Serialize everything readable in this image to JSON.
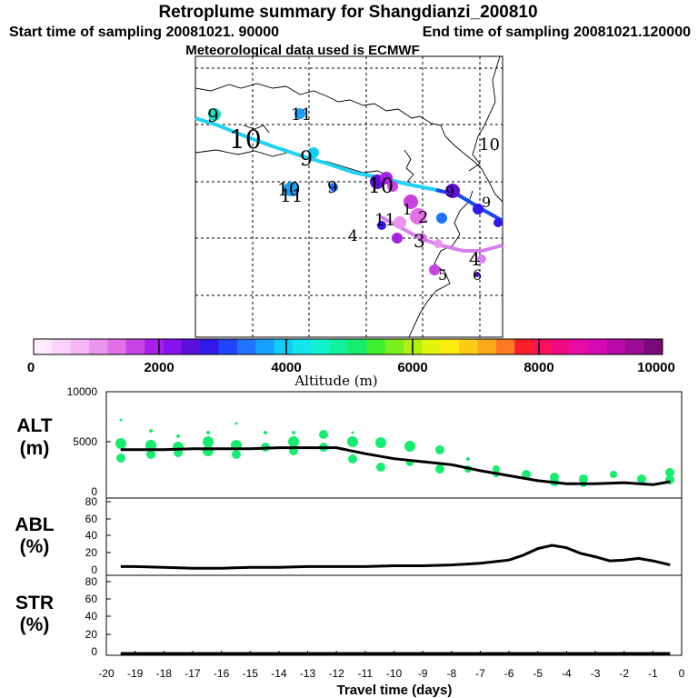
{
  "header": {
    "title": "Retroplume summary for Shangdianzi_200810",
    "start_label": "Start time of sampling 20081021. 90000",
    "end_label": "End time of sampling 20081021.120000",
    "met_label": "Meteorological data used is ECMWF"
  },
  "colorbar": {
    "ticks": [
      "0",
      "2000",
      "4000",
      "6000",
      "8000",
      "10000"
    ],
    "label": "Altitude (m)",
    "colors": [
      "#ffeaff",
      "#fbd2fb",
      "#f5b6f5",
      "#eb96ee",
      "#e070e8",
      "#c743e4",
      "#a81fea",
      "#8612ee",
      "#5c10dc",
      "#3119ec",
      "#2043ff",
      "#1f73ff",
      "#16a2fc",
      "#12ccf8",
      "#12e6ec",
      "#12f2cc",
      "#14f09e",
      "#16ec6e",
      "#3ef02e",
      "#7af01e",
      "#b0f010",
      "#e2f40a",
      "#fcec10",
      "#fccc14",
      "#fca81c",
      "#fc7a24",
      "#fc1e2a",
      "#f8105e",
      "#f00a84",
      "#e80aa6",
      "#d40ab4",
      "#b80aa8",
      "#9a0c92",
      "#7a0a7a"
    ]
  },
  "map": {
    "labels": [
      "9",
      "10",
      "11",
      "9",
      "10",
      "11",
      "9",
      "10",
      "4",
      "11",
      "1",
      "2",
      "3",
      "4",
      "5",
      "6",
      "10",
      "9",
      "9"
    ]
  },
  "panels": {
    "alt": {
      "label_top": "ALT",
      "label_bottom": "(m)",
      "yticks": [
        "10000",
        "5000",
        "0"
      ]
    },
    "abl": {
      "label_top": "ABL",
      "label_bottom": "(%)",
      "yticks": [
        "80",
        "60",
        "40",
        "20",
        "0"
      ]
    },
    "str": {
      "label_top": "STR",
      "label_bottom": "(%)",
      "yticks": [
        "80",
        "60",
        "40",
        "20",
        "0"
      ]
    }
  },
  "xaxis": {
    "ticks": [
      "-20",
      "-19",
      "-18",
      "-17",
      "-16",
      "-15",
      "-14",
      "-13",
      "-12",
      "-11",
      "-10",
      "-9",
      "-8",
      "-7",
      "-6",
      "-5",
      "-4",
      "-3",
      "-2",
      "-1",
      "0"
    ],
    "label": "Travel time (days)"
  },
  "chart_data": [
    {
      "type": "line",
      "title": "ALT",
      "ylabel": "(m)",
      "xlabel": "Travel time (days)",
      "ylim": [
        0,
        10000
      ],
      "xlim": [
        -20,
        0
      ],
      "x": [
        -19.5,
        -19,
        -18,
        -17,
        -16,
        -15,
        -14,
        -13,
        -12,
        -11,
        -10,
        -9,
        -8,
        -7,
        -6,
        -5,
        -4,
        -3,
        -2,
        -1,
        -0.4
      ],
      "values": [
        4200,
        4200,
        4200,
        4300,
        4300,
        4300,
        4400,
        4400,
        4400,
        3800,
        3300,
        3000,
        2700,
        2100,
        1600,
        1100,
        800,
        800,
        900,
        700,
        1000
      ]
    },
    {
      "type": "line",
      "title": "ABL",
      "ylabel": "(%)",
      "xlabel": "Travel time (days)",
      "ylim": [
        0,
        90
      ],
      "xlim": [
        -20,
        0
      ],
      "x": [
        -19.5,
        -19,
        -18,
        -17,
        -16,
        -15,
        -14,
        -13,
        -12,
        -11,
        -10,
        -9,
        -8,
        -7,
        -6,
        -5.5,
        -5,
        -4.5,
        -4,
        -3.5,
        -3,
        -2.5,
        -2,
        -1.5,
        -1,
        -0.4
      ],
      "values": [
        4,
        4,
        3,
        2,
        2,
        3,
        3,
        4,
        4,
        4,
        5,
        5,
        6,
        8,
        12,
        18,
        26,
        30,
        27,
        20,
        16,
        11,
        12,
        14,
        11,
        6
      ]
    },
    {
      "type": "line",
      "title": "STR",
      "ylabel": "(%)",
      "xlabel": "Travel time (days)",
      "ylim": [
        0,
        90
      ],
      "xlim": [
        -20,
        0
      ],
      "x": [
        -19.5,
        -15,
        -10,
        -5,
        -0.4
      ],
      "values": [
        1,
        1,
        1,
        1,
        1
      ]
    }
  ]
}
